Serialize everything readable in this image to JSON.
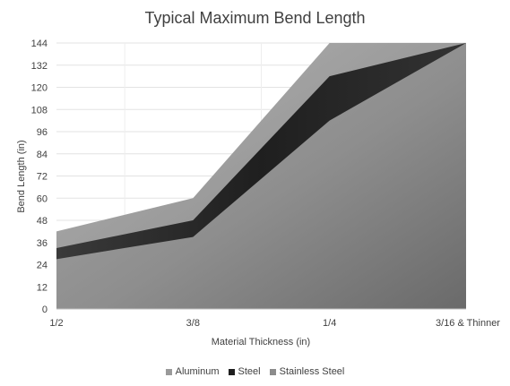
{
  "chart_data": {
    "type": "area",
    "title": "Typical Maximum Bend Length",
    "xlabel": "Material Thickness (in)",
    "ylabel": "Bend Length (in)",
    "categories": [
      "1/2",
      "3/8",
      "1/4",
      "3/16 & Thinner"
    ],
    "ylim": [
      0,
      144
    ],
    "yticks": [
      0,
      12,
      24,
      36,
      48,
      60,
      72,
      84,
      96,
      108,
      120,
      132,
      144
    ],
    "grid": true,
    "legend_position": "bottom",
    "series": [
      {
        "name": "Aluminum",
        "values": [
          42,
          60,
          144,
          144
        ],
        "color": "#9a9a9a"
      },
      {
        "name": "Steel",
        "values": [
          33,
          48,
          126,
          144
        ],
        "color": "#2a2a2a"
      },
      {
        "name": "Stainless Steel",
        "values": [
          27,
          39,
          102,
          144
        ],
        "color": "#8c8c8c"
      }
    ]
  }
}
